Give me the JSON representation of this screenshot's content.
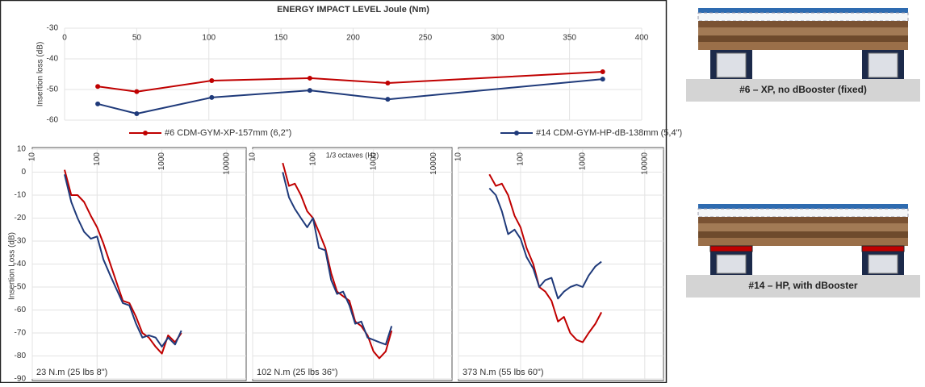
{
  "chart_data": [
    {
      "type": "line",
      "title": "ENERGY IMPACT LEVEL Joule (Nm)",
      "y_label": "Insertion loss (dB)",
      "xlim": [
        0,
        400
      ],
      "xticks": [
        0,
        50,
        100,
        150,
        200,
        250,
        300,
        350,
        400
      ],
      "ylim": [
        -60,
        -30
      ],
      "yticks": [
        -30,
        -40,
        -50,
        -60
      ],
      "grid": true,
      "series": [
        {
          "name": "#6 CDM-GYM-XP-157mm (6,2\")",
          "color": "#c00000",
          "x": [
            23,
            50,
            102,
            170,
            224,
            373
          ],
          "values": [
            -49,
            -50.7,
            -47.1,
            -46.3,
            -47.9,
            -44.2
          ]
        },
        {
          "name": "#14 CDM-GYM-HP-dB-138mm (5,4\")",
          "color": "#1f3a7a",
          "x": [
            23,
            50,
            102,
            170,
            224,
            373
          ],
          "values": [
            -54.7,
            -57.9,
            -52.6,
            -50.3,
            -53.2,
            -46.6
          ]
        }
      ]
    },
    {
      "type": "line",
      "title": "23 N.m (25 lbs 8\")",
      "y_label": "Insertion Loss (dB)",
      "log_x": true,
      "xlim": [
        10,
        20000
      ],
      "xticks": [
        10,
        100,
        1000,
        10000
      ],
      "ylim": [
        -90,
        10
      ],
      "yticks": [
        10,
        0,
        -10,
        -20,
        -30,
        -40,
        -50,
        -60,
        -70,
        -80,
        -90
      ],
      "grid": true,
      "x": [
        31.5,
        40,
        50,
        63,
        80,
        100,
        125,
        160,
        200,
        250,
        315,
        400,
        500,
        630,
        800,
        1000,
        1250,
        1600,
        2000
      ],
      "series": [
        {
          "color": "#c00000",
          "values": [
            1,
            -10,
            -10,
            -13,
            -19,
            -24,
            -31,
            -40,
            -48,
            -56,
            -57,
            -63,
            -70,
            -72,
            -76,
            -79,
            -71,
            -74,
            -70
          ]
        },
        {
          "color": "#1f3a7a",
          "values": [
            -1,
            -13,
            -20,
            -26,
            -29,
            -28,
            -38,
            -45,
            -51,
            -57,
            -58,
            -66,
            -72,
            -71,
            -72,
            -76,
            -72,
            -75,
            -69
          ]
        }
      ]
    },
    {
      "type": "line",
      "title": "102 N.m (25 lbs 36\")",
      "x_label": "1/3 octaves (Hz)",
      "log_x": true,
      "xlim": [
        10,
        20000
      ],
      "xticks": [
        10,
        100,
        1000,
        10000
      ],
      "ylim": [
        -90,
        10
      ],
      "grid": true,
      "x": [
        31.5,
        40,
        50,
        63,
        80,
        100,
        125,
        160,
        200,
        250,
        315,
        400,
        500,
        630,
        800,
        1000,
        1250,
        1600,
        2000
      ],
      "series": [
        {
          "color": "#c00000",
          "values": [
            4,
            -6,
            -5,
            -10,
            -17,
            -20,
            -26,
            -33,
            -44,
            -52,
            -54,
            -56,
            -65,
            -67,
            -71,
            -78,
            -81,
            -78,
            -69
          ]
        },
        {
          "color": "#1f3a7a",
          "values": [
            0,
            -11,
            -16,
            -20,
            -24,
            -20,
            -33,
            -34,
            -47,
            -53,
            -52,
            -58,
            -66,
            -65,
            -72,
            -73,
            -74,
            -75,
            -67
          ]
        }
      ]
    },
    {
      "type": "line",
      "title": "373 N.m (55 lbs 60\")",
      "log_x": true,
      "xlim": [
        10,
        20000
      ],
      "xticks": [
        10,
        100,
        1000,
        10000
      ],
      "ylim": [
        -90,
        10
      ],
      "grid": true,
      "x": [
        31.5,
        40,
        50,
        63,
        80,
        100,
        125,
        160,
        200,
        250,
        315,
        400,
        500,
        630,
        800,
        1000,
        1250,
        1600,
        2000
      ],
      "series": [
        {
          "color": "#c00000",
          "values": [
            -1,
            -6,
            -5,
            -10,
            -19,
            -24,
            -33,
            -40,
            -50,
            -52,
            -56,
            -65,
            -63,
            -70,
            -73,
            -74,
            -70,
            -66,
            -61
          ]
        },
        {
          "color": "#1f3a7a",
          "values": [
            -7,
            -10,
            -17,
            -27,
            -25,
            -29,
            -37,
            -42,
            -50,
            -47,
            -46,
            -55,
            -52,
            -50,
            -49,
            -50,
            -45,
            -41,
            -39
          ]
        }
      ]
    }
  ],
  "figures": [
    {
      "caption": "#6 – XP, no dBooster (fixed)"
    },
    {
      "caption": "#14 – HP, with dBooster"
    }
  ]
}
